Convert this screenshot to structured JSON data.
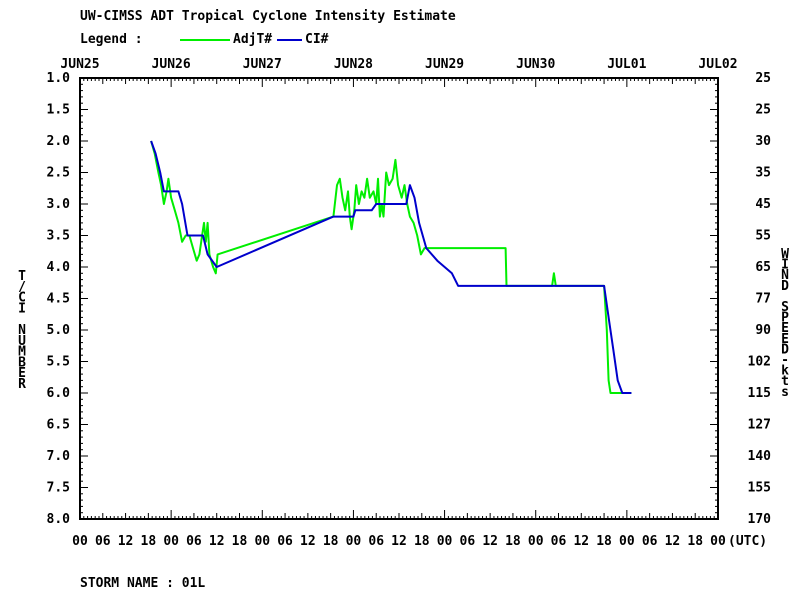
{
  "chart_data": {
    "type": "line",
    "title": "UW-CIMSS ADT Tropical Cyclone Intensity Estimate",
    "legend_label": "Legend :",
    "legend_placement": "top-left",
    "ylabel_left": "T/CI NUMBER",
    "ylabel_right": "WIND SPEED-kts",
    "x_unit_label": "(UTC)",
    "grid": false,
    "x_date_labels": [
      "JUN25",
      "JUN26",
      "JUN27",
      "JUN28",
      "JUN29",
      "JUN30",
      "JUL01",
      "JUL02"
    ],
    "x_hour_labels": [
      "00",
      "06",
      "12",
      "18"
    ],
    "x_final_hour_label": "00",
    "ylim": [
      8.0,
      1.0
    ],
    "y_ticks": [
      "1.0",
      "1.5",
      "2.0",
      "2.5",
      "3.0",
      "3.5",
      "4.0",
      "4.5",
      "5.0",
      "5.5",
      "6.0",
      "6.5",
      "7.0",
      "7.5",
      "8.0"
    ],
    "y_right_ticks": [
      "25",
      "25",
      "30",
      "35",
      "45",
      "55",
      "65",
      "77",
      "90",
      "102",
      "115",
      "127",
      "140",
      "155",
      "170"
    ],
    "x_range_days": [
      0,
      7
    ],
    "series": [
      {
        "name": "AdjT#",
        "color": "#00ee00",
        "points": [
          [
            0.78,
            2.0
          ],
          [
            0.82,
            2.2
          ],
          [
            0.86,
            2.5
          ],
          [
            0.89,
            2.7
          ],
          [
            0.92,
            3.0
          ],
          [
            0.95,
            2.8
          ],
          [
            0.97,
            2.6
          ],
          [
            1.0,
            2.9
          ],
          [
            1.04,
            3.1
          ],
          [
            1.08,
            3.3
          ],
          [
            1.12,
            3.6
          ],
          [
            1.16,
            3.5
          ],
          [
            1.2,
            3.5
          ],
          [
            1.24,
            3.7
          ],
          [
            1.28,
            3.9
          ],
          [
            1.31,
            3.8
          ],
          [
            1.34,
            3.5
          ],
          [
            1.36,
            3.3
          ],
          [
            1.38,
            3.6
          ],
          [
            1.4,
            3.3
          ],
          [
            1.42,
            3.8
          ],
          [
            1.46,
            4.0
          ],
          [
            1.49,
            4.1
          ],
          [
            1.51,
            3.8
          ],
          [
            2.78,
            3.2
          ],
          [
            2.82,
            2.7
          ],
          [
            2.85,
            2.6
          ],
          [
            2.88,
            2.9
          ],
          [
            2.91,
            3.1
          ],
          [
            2.94,
            2.8
          ],
          [
            2.96,
            3.2
          ],
          [
            2.98,
            3.4
          ],
          [
            3.01,
            3.1
          ],
          [
            3.03,
            2.7
          ],
          [
            3.06,
            3.0
          ],
          [
            3.09,
            2.8
          ],
          [
            3.12,
            2.9
          ],
          [
            3.15,
            2.6
          ],
          [
            3.18,
            2.9
          ],
          [
            3.22,
            2.8
          ],
          [
            3.25,
            3.0
          ],
          [
            3.27,
            2.6
          ],
          [
            3.29,
            3.2
          ],
          [
            3.31,
            3.0
          ],
          [
            3.33,
            3.2
          ],
          [
            3.36,
            2.5
          ],
          [
            3.39,
            2.7
          ],
          [
            3.43,
            2.6
          ],
          [
            3.46,
            2.3
          ],
          [
            3.49,
            2.7
          ],
          [
            3.53,
            2.9
          ],
          [
            3.56,
            2.7
          ],
          [
            3.59,
            3.0
          ],
          [
            3.62,
            3.2
          ],
          [
            3.66,
            3.3
          ],
          [
            3.7,
            3.5
          ],
          [
            3.74,
            3.8
          ],
          [
            3.78,
            3.7
          ],
          [
            3.8,
            3.7
          ],
          [
            4.67,
            3.7
          ],
          [
            4.68,
            4.3
          ],
          [
            4.7,
            4.3
          ],
          [
            5.18,
            4.3
          ],
          [
            5.2,
            4.1
          ],
          [
            5.22,
            4.3
          ],
          [
            5.75,
            4.3
          ],
          [
            5.78,
            5.0
          ],
          [
            5.8,
            5.8
          ],
          [
            5.82,
            6.0
          ],
          [
            5.97,
            6.0
          ],
          [
            6.0,
            6.0
          ],
          [
            6.05,
            6.0
          ]
        ]
      },
      {
        "name": "CI#",
        "color": "#0000cc",
        "points": [
          [
            0.78,
            2.0
          ],
          [
            0.83,
            2.2
          ],
          [
            0.88,
            2.5
          ],
          [
            0.92,
            2.8
          ],
          [
            1.08,
            2.8
          ],
          [
            1.12,
            3.0
          ],
          [
            1.18,
            3.5
          ],
          [
            1.35,
            3.5
          ],
          [
            1.4,
            3.8
          ],
          [
            1.5,
            4.0
          ],
          [
            2.78,
            3.2
          ],
          [
            3.0,
            3.2
          ],
          [
            3.02,
            3.1
          ],
          [
            3.2,
            3.1
          ],
          [
            3.25,
            3.0
          ],
          [
            3.58,
            3.0
          ],
          [
            3.62,
            2.7
          ],
          [
            3.67,
            2.9
          ],
          [
            3.72,
            3.3
          ],
          [
            3.8,
            3.7
          ],
          [
            3.92,
            3.9
          ],
          [
            4.0,
            4.0
          ],
          [
            4.08,
            4.1
          ],
          [
            4.15,
            4.3
          ],
          [
            4.2,
            4.3
          ],
          [
            5.75,
            4.3
          ],
          [
            5.8,
            4.8
          ],
          [
            5.85,
            5.3
          ],
          [
            5.9,
            5.8
          ],
          [
            5.95,
            6.0
          ],
          [
            6.05,
            6.0
          ]
        ]
      }
    ],
    "footer_label": "STORM NAME : 01L"
  }
}
